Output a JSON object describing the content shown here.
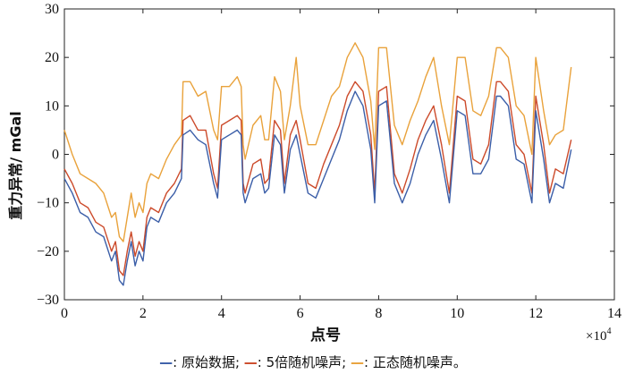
{
  "chart_data": {
    "type": "line",
    "xlabel": "点号",
    "ylabel": "重力异常/ mGal",
    "x_multiplier": "×10",
    "x_multiplier_exp": "4",
    "xlim": [
      0,
      14
    ],
    "ylim": [
      -30,
      30
    ],
    "xticks": [
      0,
      2,
      4,
      6,
      8,
      10,
      12,
      14
    ],
    "yticks": [
      -30,
      -20,
      -10,
      0,
      10,
      20,
      30
    ],
    "grid": false,
    "legend_position": "bottom",
    "x": [
      0,
      0.2,
      0.4,
      0.6,
      0.8,
      1.0,
      1.2,
      1.3,
      1.4,
      1.5,
      1.6,
      1.7,
      1.8,
      1.9,
      2.0,
      2.1,
      2.2,
      2.4,
      2.6,
      2.8,
      2.98,
      3.02,
      3.2,
      3.4,
      3.6,
      3.8,
      3.9,
      4.0,
      4.2,
      4.4,
      4.5,
      4.55,
      4.6,
      4.8,
      5.0,
      5.1,
      5.2,
      5.35,
      5.5,
      5.6,
      5.75,
      5.9,
      6.0,
      6.2,
      6.4,
      6.6,
      6.8,
      7.0,
      7.2,
      7.4,
      7.6,
      7.8,
      7.9,
      8.0,
      8.2,
      8.4,
      8.6,
      8.8,
      9.0,
      9.2,
      9.4,
      9.6,
      9.8,
      10.0,
      10.2,
      10.4,
      10.6,
      10.8,
      11.0,
      11.1,
      11.3,
      11.5,
      11.7,
      11.9,
      12.0,
      12.2,
      12.35,
      12.5,
      12.7,
      12.9
    ],
    "series": [
      {
        "name": "原始数据",
        "color": "#3b5ea8",
        "values": [
          -5,
          -8,
          -12,
          -13,
          -16,
          -17,
          -22,
          -20,
          -26,
          -27,
          -22,
          -18,
          -23,
          -20,
          -22,
          -15,
          -13,
          -14,
          -10,
          -8,
          -5,
          4,
          5,
          3,
          2,
          -6,
          -9,
          3,
          4,
          5,
          4,
          -8,
          -10,
          -5,
          -4,
          -8,
          -7,
          4,
          2,
          -8,
          1,
          4,
          0,
          -8,
          -9,
          -5,
          -1,
          3,
          9,
          13,
          10,
          1,
          -10,
          10,
          11,
          -6,
          -10,
          -6,
          0,
          4,
          7,
          -1,
          -10,
          9,
          8,
          -4,
          -4,
          -1,
          12,
          12,
          10,
          -1,
          -2,
          -10,
          9,
          -1,
          -10,
          -6,
          -7,
          1
        ]
      },
      {
        "name": "5倍随机噪声",
        "color": "#cc4a2a",
        "values": [
          -3,
          -6,
          -10,
          -11,
          -14,
          -15,
          -20,
          -18,
          -24,
          -25,
          -20,
          -16,
          -21,
          -18,
          -20,
          -13,
          -11,
          -12,
          -8,
          -6,
          -3,
          7,
          8,
          5,
          5,
          -4,
          -7,
          6,
          7,
          8,
          7,
          -6,
          -8,
          -2,
          -1,
          -6,
          -5,
          7,
          5,
          -6,
          4,
          7,
          3,
          -6,
          -7,
          -2,
          2,
          6,
          12,
          15,
          13,
          4,
          -8,
          13,
          14,
          -4,
          -8,
          -3,
          3,
          7,
          10,
          2,
          -8,
          12,
          11,
          -1,
          -2,
          2,
          15,
          15,
          13,
          2,
          0,
          -8,
          12,
          2,
          -8,
          -3,
          -4,
          3
        ]
      },
      {
        "name": "正态随机噪声",
        "color": "#e9a23b",
        "values": [
          5,
          0,
          -4,
          -5,
          -6,
          -8,
          -13,
          -12,
          -17,
          -18,
          -13,
          -8,
          -13,
          -10,
          -12,
          -6,
          -4,
          -5,
          -1,
          2,
          4,
          15,
          15,
          12,
          13,
          5,
          3,
          14,
          14,
          16,
          14,
          2,
          -1,
          6,
          8,
          3,
          3,
          16,
          13,
          3,
          10,
          20,
          10,
          2,
          2,
          7,
          12,
          14,
          20,
          23,
          20,
          11,
          1,
          22,
          22,
          6,
          2,
          7,
          11,
          16,
          20,
          10,
          2,
          20,
          20,
          9,
          8,
          12,
          22,
          22,
          20,
          10,
          8,
          0,
          20,
          9,
          2,
          4,
          5,
          18
        ]
      }
    ]
  },
  "legend": {
    "items": [
      {
        "mark": "—",
        "sep": ": ",
        "label": "原始数据;",
        "color": "#3b5ea8"
      },
      {
        "mark": "—",
        "sep": ": ",
        "label": "5倍随机噪声;",
        "color": "#cc4a2a"
      },
      {
        "mark": "—",
        "sep": ": ",
        "label": "正态随机噪声。",
        "color": "#e9a23b"
      }
    ]
  }
}
